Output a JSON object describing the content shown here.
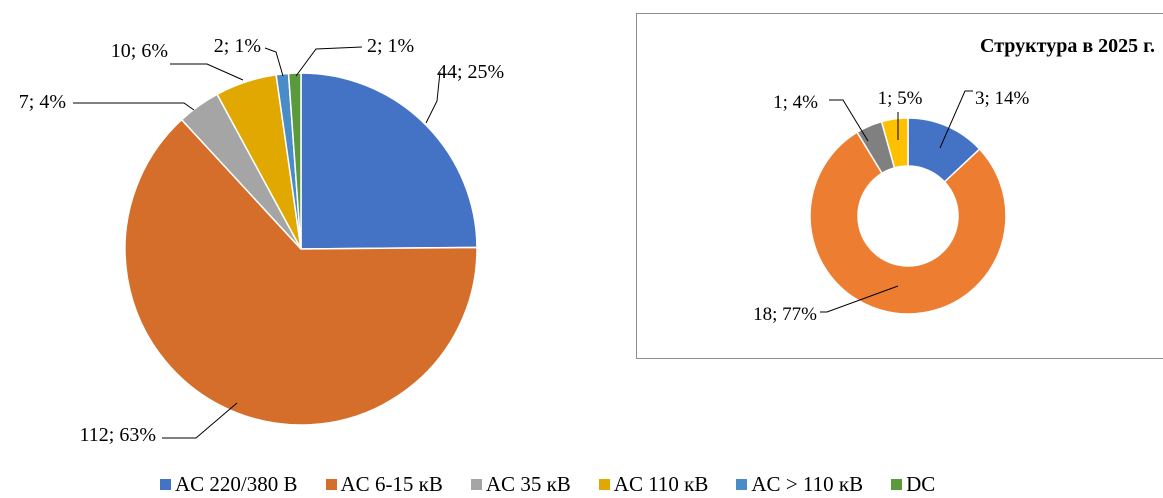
{
  "chart_data": [
    {
      "type": "pie",
      "title": "",
      "categories": [
        "AC 220/380 В",
        "AC 6-15 кВ",
        "AC 35 кВ",
        "AC 110 кВ",
        "AC > 110 кВ",
        "DC"
      ],
      "values": [
        44,
        112,
        7,
        10,
        2,
        2
      ],
      "labels": [
        "44; 25%",
        "112; 63%",
        "7; 4%",
        "10; 6%",
        "2; 1%",
        "2; 1%"
      ],
      "colors": [
        "#4472C4",
        "#D46E2A",
        "#A5A5A5",
        "#E0A800",
        "#4A8CC7",
        "#5B9A3C"
      ],
      "legend_position": "bottom"
    },
    {
      "type": "donut",
      "title": "Структура в 2025 г.",
      "categories": [
        "AC 220/380 В",
        "AC 6-15 кВ",
        "AC 35 кВ",
        "AC 110 кВ"
      ],
      "values": [
        3,
        18,
        1,
        1
      ],
      "labels": [
        "3; 14%",
        "18; 77%",
        "1; 4%",
        "1; 5%"
      ],
      "colors": [
        "#4472C4",
        "#ED7D31",
        "#808080",
        "#FFC000"
      ]
    }
  ],
  "legend": {
    "items": [
      {
        "label": "AC 220/380 В",
        "color": "#4472C4"
      },
      {
        "label": "AC 6-15 кВ",
        "color": "#D46E2A"
      },
      {
        "label": "AC 35 кВ",
        "color": "#A5A5A5"
      },
      {
        "label": "AC 110 кВ",
        "color": "#E0A800"
      },
      {
        "label": "AC > 110 кВ",
        "color": "#4A8CC7"
      },
      {
        "label": "DC",
        "color": "#5B9A3C"
      }
    ]
  }
}
